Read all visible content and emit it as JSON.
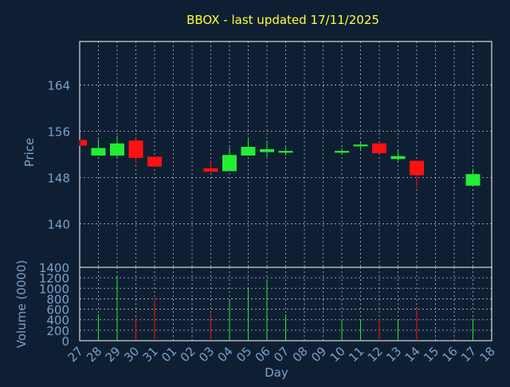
{
  "title": "BBOX - last updated 17/11/2025",
  "colors": {
    "background": "#0f1f33",
    "title": "#ffff33",
    "axis_text": "#7aa0c8",
    "frame": "#ffffff",
    "grid": "#ffffff",
    "up": "#22ee33",
    "down": "#ff1111"
  },
  "chart_data": [
    {
      "type": "candlestick",
      "ylabel": "Price",
      "ylim": [
        132.5,
        171.5
      ],
      "yticks": [
        140,
        148,
        156,
        164
      ],
      "grid": true,
      "x_categories": [
        "27",
        "28",
        "29",
        "30",
        "31",
        "01",
        "02",
        "03",
        "04",
        "05",
        "06",
        "07",
        "08",
        "09",
        "10",
        "11",
        "12",
        "13",
        "14",
        "15",
        "16",
        "17",
        "18"
      ],
      "candles": [
        {
          "day": "27",
          "open": 154.5,
          "high": 154.5,
          "low": 153.5,
          "close": 153.5
        },
        {
          "day": "28",
          "open": 151.8,
          "high": 154.6,
          "low": 151.8,
          "close": 153.1
        },
        {
          "day": "29",
          "open": 151.8,
          "high": 155.2,
          "low": 151.5,
          "close": 153.9
        },
        {
          "day": "30",
          "open": 154.4,
          "high": 154.8,
          "low": 150.5,
          "close": 151.4
        },
        {
          "day": "31",
          "open": 151.6,
          "high": 151.6,
          "low": 149.9,
          "close": 149.9
        },
        {
          "day": "03",
          "open": 149.6,
          "high": 150.7,
          "low": 148.9,
          "close": 149.0
        },
        {
          "day": "04",
          "open": 149.1,
          "high": 153.2,
          "low": 149.1,
          "close": 151.9
        },
        {
          "day": "05",
          "open": 151.8,
          "high": 154.9,
          "low": 151.8,
          "close": 153.3
        },
        {
          "day": "06",
          "open": 152.4,
          "high": 154.4,
          "low": 151.6,
          "close": 152.9
        },
        {
          "day": "07",
          "open": 152.3,
          "high": 153.2,
          "low": 151.8,
          "close": 152.6
        },
        {
          "day": "10",
          "open": 152.3,
          "high": 153.1,
          "low": 152.2,
          "close": 152.6
        },
        {
          "day": "11",
          "open": 153.4,
          "high": 154.1,
          "low": 152.6,
          "close": 153.7
        },
        {
          "day": "12",
          "open": 153.9,
          "high": 153.9,
          "low": 152.1,
          "close": 152.2
        },
        {
          "day": "13",
          "open": 151.2,
          "high": 152.8,
          "low": 150.9,
          "close": 151.7
        },
        {
          "day": "14",
          "open": 150.9,
          "high": 150.9,
          "low": 146.2,
          "close": 148.4
        },
        {
          "day": "17",
          "open": 146.6,
          "high": 149.5,
          "low": 146.6,
          "close": 148.6
        }
      ]
    },
    {
      "type": "bar",
      "ylabel": "Volume (0000)",
      "xlabel": "Day",
      "ylim": [
        0,
        1400
      ],
      "yticks": [
        0,
        200,
        400,
        600,
        800,
        1000,
        1200,
        1400
      ],
      "grid": true,
      "x_categories": [
        "27",
        "28",
        "29",
        "30",
        "31",
        "01",
        "02",
        "03",
        "04",
        "05",
        "06",
        "07",
        "08",
        "09",
        "10",
        "11",
        "12",
        "13",
        "14",
        "15",
        "16",
        "17",
        "18"
      ],
      "bars": [
        {
          "day": "27",
          "value": 0,
          "direction": "down"
        },
        {
          "day": "28",
          "value": 500,
          "direction": "up"
        },
        {
          "day": "29",
          "value": 1220,
          "direction": "up"
        },
        {
          "day": "30",
          "value": 440,
          "direction": "down"
        },
        {
          "day": "31",
          "value": 800,
          "direction": "down"
        },
        {
          "day": "03",
          "value": 500,
          "direction": "down"
        },
        {
          "day": "04",
          "value": 760,
          "direction": "up"
        },
        {
          "day": "05",
          "value": 990,
          "direction": "up"
        },
        {
          "day": "06",
          "value": 1160,
          "direction": "up"
        },
        {
          "day": "07",
          "value": 500,
          "direction": "up"
        },
        {
          "day": "10",
          "value": 400,
          "direction": "up"
        },
        {
          "day": "11",
          "value": 410,
          "direction": "up"
        },
        {
          "day": "12",
          "value": 420,
          "direction": "down"
        },
        {
          "day": "13",
          "value": 410,
          "direction": "up"
        },
        {
          "day": "14",
          "value": 600,
          "direction": "down"
        },
        {
          "day": "17",
          "value": 420,
          "direction": "up"
        }
      ]
    }
  ]
}
